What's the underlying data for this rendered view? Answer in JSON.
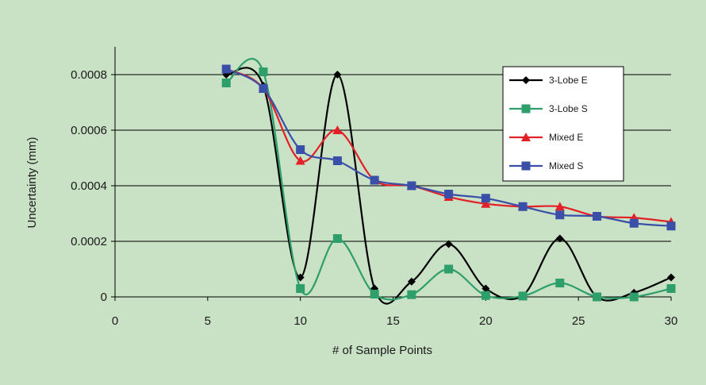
{
  "chart_data": {
    "type": "line",
    "title": "",
    "xlabel": "# of Sample Points",
    "ylabel": "Uncertainty (mm)",
    "xlim": [
      0,
      30
    ],
    "ylim": [
      0,
      0.0009
    ],
    "xticks": [
      0,
      5,
      10,
      15,
      20,
      25,
      30
    ],
    "yticks": [
      0,
      0.0002,
      0.0004,
      0.0006,
      0.0008
    ],
    "ytick_labels": [
      "0",
      "0.0002",
      "0.0004",
      "0.0006",
      "0.0008"
    ],
    "grid": "horizontal",
    "legend_position": "top-right",
    "smooth": true,
    "x": [
      6,
      8,
      10,
      12,
      14,
      16,
      18,
      20,
      22,
      24,
      26,
      28,
      30
    ],
    "series": [
      {
        "name": "3-Lobe E",
        "color": "#000000",
        "marker": "diamond",
        "values": [
          0.0008,
          0.00076,
          7e-05,
          0.0008,
          3e-05,
          5.5e-05,
          0.00019,
          3e-05,
          5e-06,
          0.00021,
          0.0,
          1.5e-05,
          7e-05
        ]
      },
      {
        "name": "3-Lobe S",
        "color": "#2e9e6b",
        "marker": "square",
        "values": [
          0.00077,
          0.00081,
          3e-05,
          0.00021,
          1e-05,
          8e-06,
          0.0001,
          5e-06,
          3e-06,
          5e-05,
          0.0,
          0.0,
          3e-05
        ]
      },
      {
        "name": "Mixed E",
        "color": "#e32028",
        "marker": "triangle",
        "values": [
          0.00082,
          0.00075,
          0.00049,
          0.0006,
          0.00042,
          0.0004,
          0.00036,
          0.000335,
          0.000325,
          0.000325,
          0.00029,
          0.000285,
          0.00027
        ]
      },
      {
        "name": "Mixed S",
        "color": "#3a4fa8",
        "marker": "square",
        "values": [
          0.00082,
          0.00075,
          0.00053,
          0.00049,
          0.00042,
          0.0004,
          0.00037,
          0.000355,
          0.000325,
          0.000295,
          0.00029,
          0.000265,
          0.000255
        ]
      }
    ]
  }
}
